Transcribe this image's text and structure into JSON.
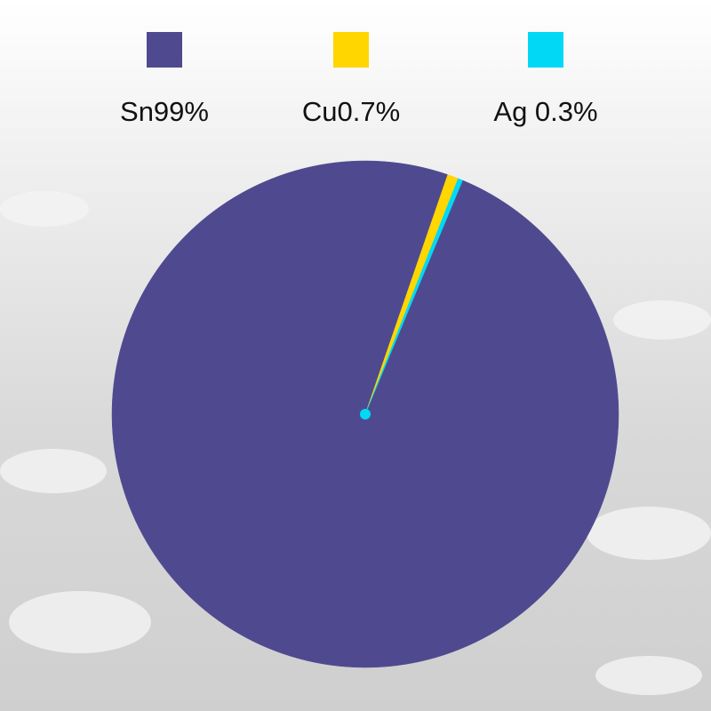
{
  "chart_data": {
    "type": "pie",
    "categories": [
      "Sn99%",
      "Cu0.7%",
      "Ag 0.3%"
    ],
    "values": [
      99,
      0.7,
      0.3
    ],
    "colors": [
      "#4f4a8f",
      "#ffd600",
      "#00d8f6"
    ]
  }
}
